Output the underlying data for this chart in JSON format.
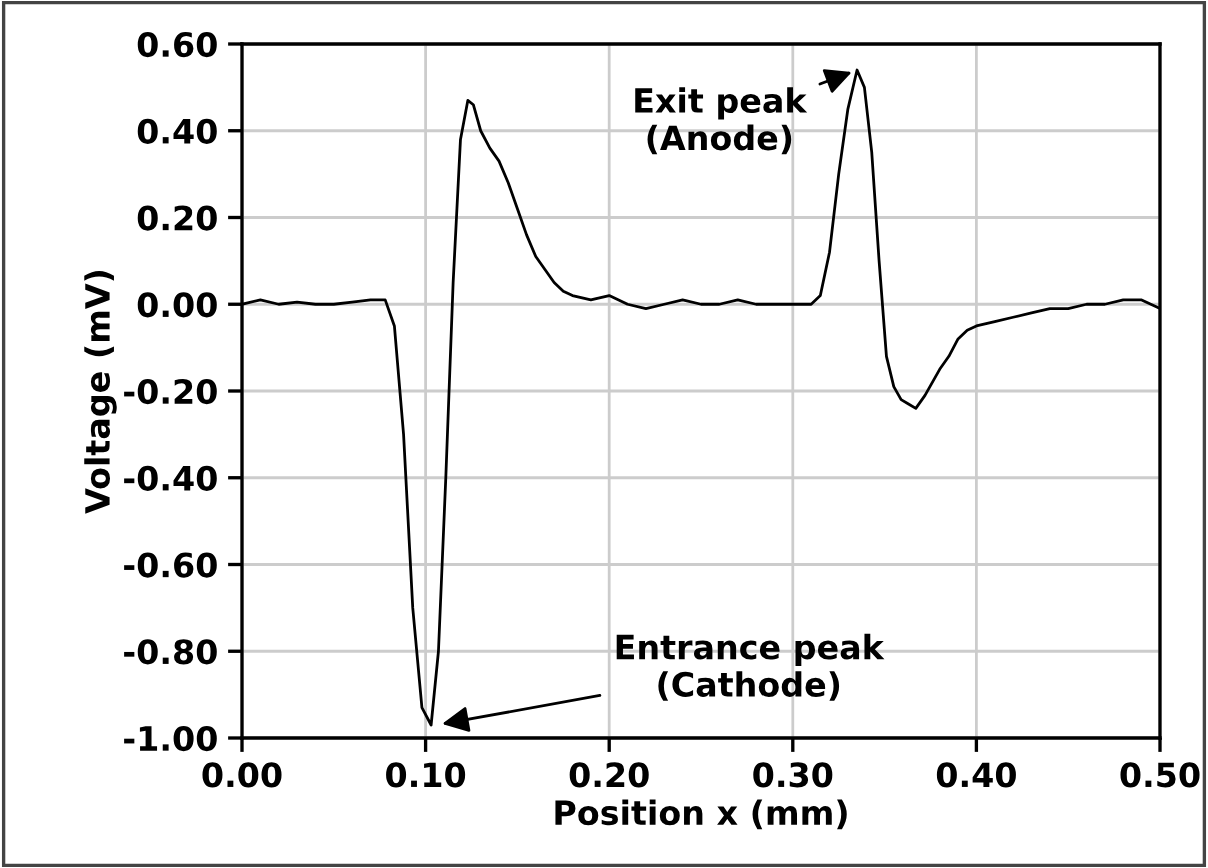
{
  "chart_data": {
    "type": "line",
    "xlabel": "Position x (mm)",
    "ylabel": "Voltage (mV)",
    "xlim": [
      0,
      0.5
    ],
    "ylim": [
      -1.0,
      0.6
    ],
    "xticks": [
      {
        "value": 0,
        "label": "0.00"
      },
      {
        "value": 0.1,
        "label": "0.10"
      },
      {
        "value": 0.2,
        "label": "0.20"
      },
      {
        "value": 0.3,
        "label": "0.30"
      },
      {
        "value": 0.4,
        "label": "0.40"
      },
      {
        "value": 0.5,
        "label": "0.50"
      }
    ],
    "yticks": [
      {
        "value": -1.0,
        "label": "-1.00"
      },
      {
        "value": -0.8,
        "label": "-0.80"
      },
      {
        "value": -0.6,
        "label": "-0.60"
      },
      {
        "value": -0.4,
        "label": "-0.40"
      },
      {
        "value": -0.2,
        "label": "-0.20"
      },
      {
        "value": 0,
        "label": "0.00"
      },
      {
        "value": 0.2,
        "label": "0.20"
      },
      {
        "value": 0.4,
        "label": "0.40"
      },
      {
        "value": 0.6,
        "label": "0.60"
      }
    ],
    "grid": true,
    "marker": "none",
    "line_style": "solid",
    "series": [
      {
        "color": "#000000",
        "x": [
          0.0,
          0.01,
          0.02,
          0.03,
          0.04,
          0.05,
          0.06,
          0.07,
          0.078,
          0.083,
          0.088,
          0.093,
          0.098,
          0.103,
          0.107,
          0.111,
          0.115,
          0.119,
          0.123,
          0.126,
          0.13,
          0.135,
          0.14,
          0.145,
          0.15,
          0.155,
          0.16,
          0.165,
          0.17,
          0.175,
          0.18,
          0.19,
          0.2,
          0.21,
          0.22,
          0.23,
          0.24,
          0.25,
          0.26,
          0.27,
          0.28,
          0.29,
          0.3,
          0.31,
          0.315,
          0.32,
          0.325,
          0.33,
          0.335,
          0.339,
          0.343,
          0.347,
          0.351,
          0.355,
          0.359,
          0.363,
          0.367,
          0.372,
          0.376,
          0.38,
          0.385,
          0.39,
          0.395,
          0.4,
          0.41,
          0.42,
          0.43,
          0.44,
          0.45,
          0.46,
          0.47,
          0.48,
          0.49,
          0.5
        ],
        "values": [
          0.0,
          0.01,
          0.0,
          0.005,
          0.0,
          0.0,
          0.005,
          0.01,
          0.01,
          -0.05,
          -0.3,
          -0.7,
          -0.93,
          -0.97,
          -0.8,
          -0.4,
          0.05,
          0.38,
          0.47,
          0.46,
          0.4,
          0.36,
          0.33,
          0.28,
          0.22,
          0.16,
          0.11,
          0.08,
          0.05,
          0.03,
          0.02,
          0.01,
          0.02,
          0.0,
          -0.01,
          0.0,
          0.01,
          0.0,
          0.0,
          0.01,
          0.0,
          0.0,
          0.0,
          0.0,
          0.02,
          0.12,
          0.3,
          0.45,
          0.54,
          0.5,
          0.35,
          0.1,
          -0.12,
          -0.19,
          -0.22,
          -0.23,
          -0.24,
          -0.21,
          -0.18,
          -0.15,
          -0.12,
          -0.08,
          -0.06,
          -0.05,
          -0.04,
          -0.03,
          -0.02,
          -0.01,
          -0.01,
          0.0,
          0.0,
          0.01,
          0.01,
          -0.01
        ]
      }
    ],
    "annotations": [
      {
        "text": "Exit peak\n(Anode)",
        "x": 0.335,
        "y": 0.54
      },
      {
        "text": "Entrance peak\n(Cathode)",
        "x": 0.106,
        "y": -0.97
      }
    ]
  }
}
